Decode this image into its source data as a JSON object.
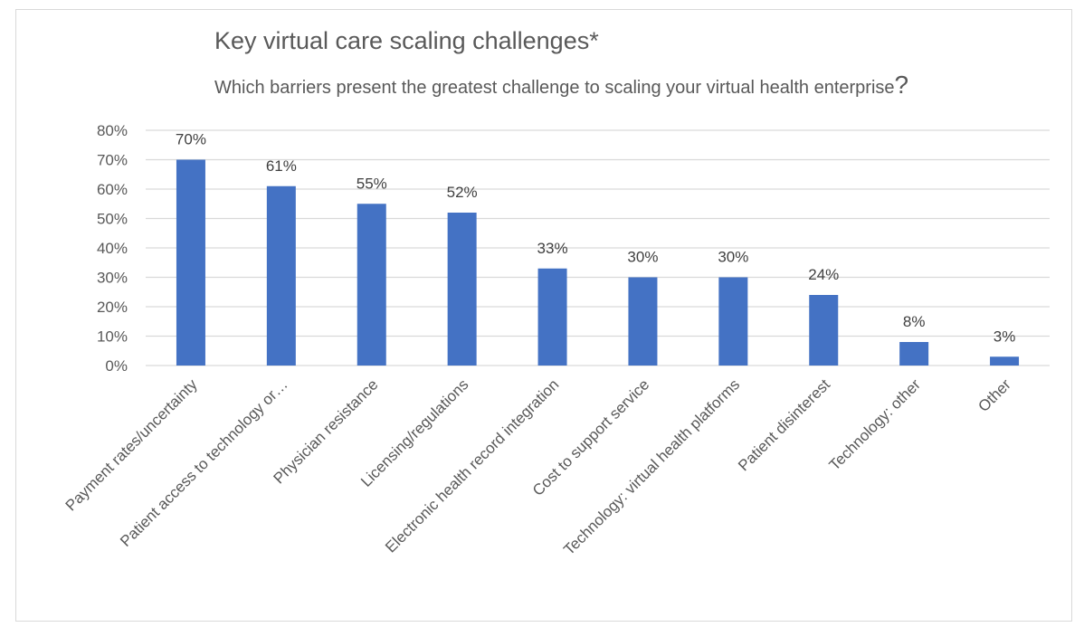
{
  "chart_data": {
    "type": "bar",
    "title": "Key virtual care scaling challenges*",
    "subtitle": "Which barriers present the greatest challenge to scaling your virtual health enterprise",
    "subtitle_end": "?",
    "xlabel": "",
    "ylabel": "",
    "ylim": [
      0,
      80
    ],
    "yticks": [
      "0%",
      "10%",
      "20%",
      "30%",
      "40%",
      "50%",
      "60%",
      "70%",
      "80%"
    ],
    "grid": true,
    "legend": "none",
    "bar_color": "#4472c4",
    "categories": [
      "Payment rates/uncertainty",
      "Patient access to technology or…",
      "Physician resistance",
      "Licensing/regulations",
      "Electronic health record integration",
      "Cost to support service",
      "Technology: virtual health platforms",
      "Patient disinterest",
      "Technology: other",
      "Other"
    ],
    "values": [
      70,
      61,
      55,
      52,
      33,
      30,
      30,
      24,
      8,
      3
    ],
    "data_labels": [
      "70%",
      "61%",
      "55%",
      "52%",
      "33%",
      "30%",
      "30%",
      "24%",
      "8%",
      "3%"
    ]
  }
}
